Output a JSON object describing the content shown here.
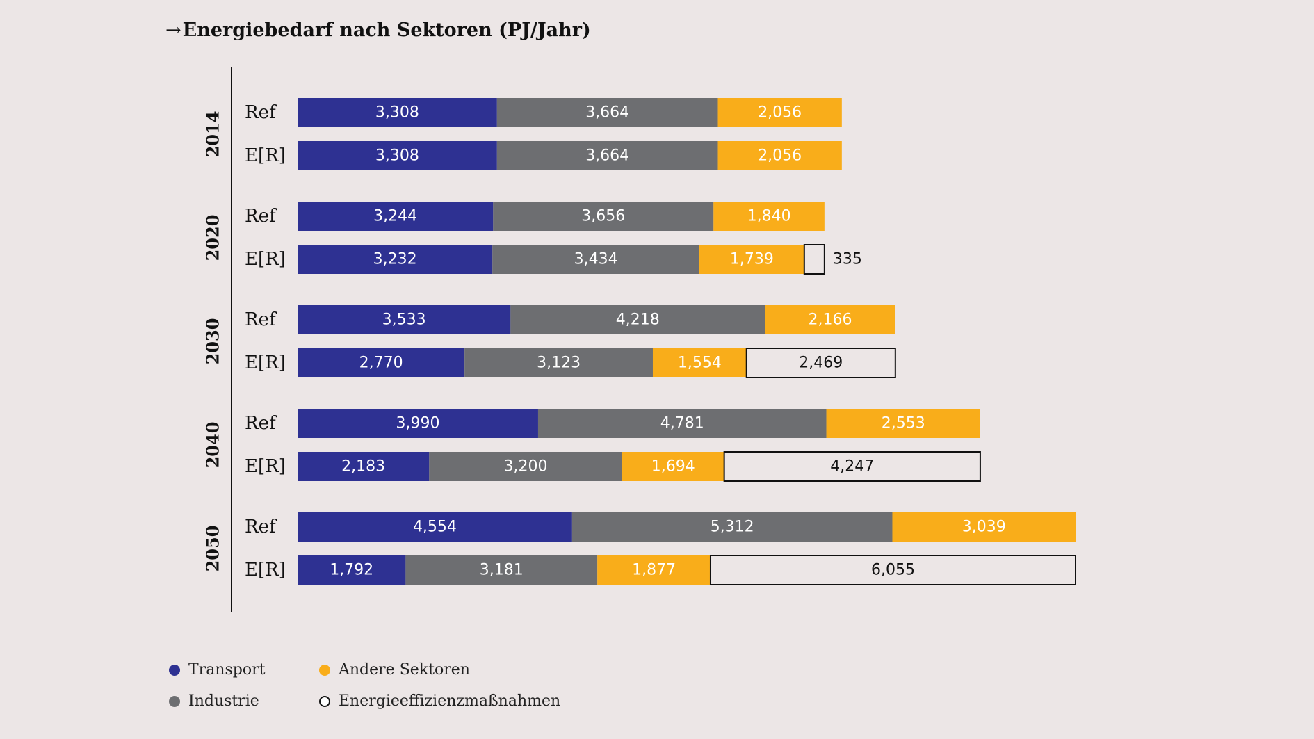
{
  "chart_data": {
    "type": "bar",
    "orientation": "horizontal",
    "stacked": true,
    "title": "Energiebedarf nach Sektoren (PJ/Jahr)",
    "title_arrow": "→",
    "groups": [
      {
        "year": "2014",
        "rows": [
          {
            "label": "Ref",
            "values": [
              3308,
              3664,
              2056,
              null
            ],
            "labels": [
              "3,308",
              "3,664",
              "2,056",
              ""
            ]
          },
          {
            "label": "E[R]",
            "values": [
              3308,
              3664,
              2056,
              null
            ],
            "labels": [
              "3,308",
              "3,664",
              "2,056",
              ""
            ]
          }
        ]
      },
      {
        "year": "2020",
        "rows": [
          {
            "label": "Ref",
            "values": [
              3244,
              3656,
              1840,
              null
            ],
            "labels": [
              "3,244",
              "3,656",
              "1,840",
              ""
            ]
          },
          {
            "label": "E[R]",
            "values": [
              3232,
              3434,
              1739,
              335
            ],
            "labels": [
              "3,232",
              "3,434",
              "1,739",
              "335"
            ]
          }
        ]
      },
      {
        "year": "2030",
        "rows": [
          {
            "label": "Ref",
            "values": [
              3533,
              4218,
              2166,
              null
            ],
            "labels": [
              "3,533",
              "4,218",
              "2,166",
              ""
            ]
          },
          {
            "label": "E[R]",
            "values": [
              2770,
              3123,
              1554,
              2469
            ],
            "labels": [
              "2,770",
              "3,123",
              "1,554",
              "2,469"
            ]
          }
        ]
      },
      {
        "year": "2040",
        "rows": [
          {
            "label": "Ref",
            "values": [
              3990,
              4781,
              2553,
              null
            ],
            "labels": [
              "3,990",
              "4,781",
              "2,553",
              ""
            ]
          },
          {
            "label": "E[R]",
            "values": [
              2183,
              3200,
              1694,
              4247
            ],
            "labels": [
              "2,183",
              "3,200",
              "1,694",
              "4,247"
            ]
          }
        ]
      },
      {
        "year": "2050",
        "rows": [
          {
            "label": "Ref",
            "values": [
              4554,
              5312,
              3039,
              null
            ],
            "labels": [
              "4,554",
              "5,312",
              "3,039",
              ""
            ]
          },
          {
            "label": "E[R]",
            "values": [
              1792,
              3181,
              1877,
              6055
            ],
            "labels": [
              "1,792",
              "3,181",
              "1,877",
              "6,055"
            ]
          }
        ]
      }
    ],
    "series": [
      {
        "name": "Transport",
        "color": "#2e3192",
        "label_color": "#ffffff",
        "filled": true
      },
      {
        "name": "Industrie",
        "color": "#6d6e71",
        "label_color": "#ffffff",
        "filled": true
      },
      {
        "name": "Andere Sektoren",
        "color": "#f9ad1a",
        "label_color": "#ffffff",
        "filled": true
      },
      {
        "name": "Energieeffizienzmaßnahmen",
        "color": "#ffffff",
        "label_color": "#111111",
        "filled": false
      }
    ],
    "xlim": [
      0,
      12905
    ],
    "legend_position": "bottom-left",
    "grid": false
  }
}
